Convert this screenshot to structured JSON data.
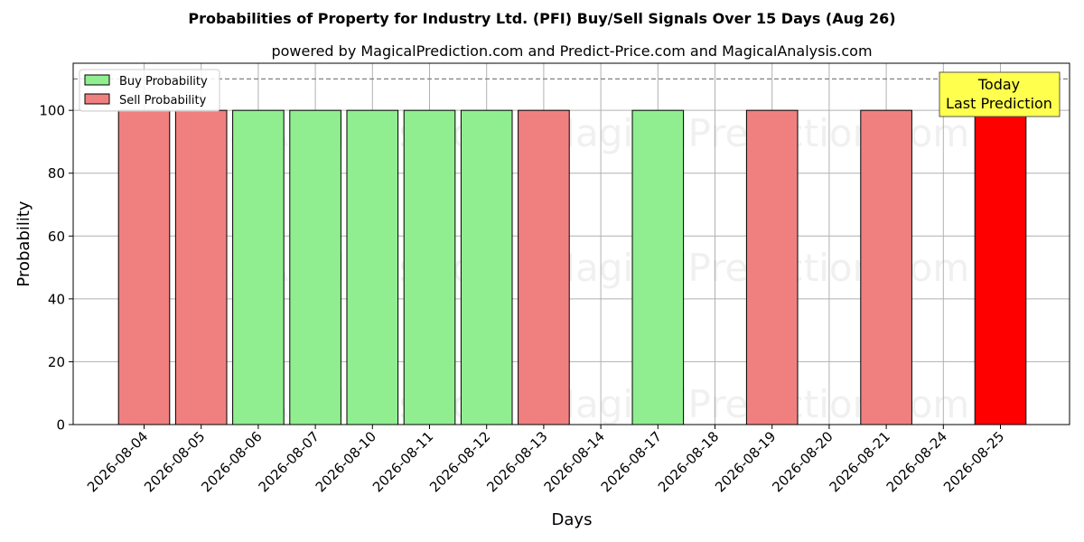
{
  "chart_data": {
    "type": "bar",
    "title": "Probabilities of Property for Industry Ltd. (PFI) Buy/Sell Signals Over 15 Days (Aug 26)",
    "subtitle": "powered by MagicalPrediction.com and Predict-Price.com and MagicalAnalysis.com",
    "xlabel": "Days",
    "ylabel": "Probability",
    "ylim": [
      0,
      115
    ],
    "yticks": [
      0,
      20,
      40,
      60,
      80,
      100
    ],
    "grid": true,
    "legend_position": "top-left",
    "categories": [
      "2026-08-04",
      "2026-08-05",
      "2026-08-06",
      "2026-08-07",
      "2026-08-10",
      "2026-08-11",
      "2026-08-12",
      "2026-08-13",
      "2026-08-14",
      "2026-08-17",
      "2026-08-18",
      "2026-08-19",
      "2026-08-20",
      "2026-08-21",
      "2026-08-24",
      "2026-08-25"
    ],
    "series": [
      {
        "name": "Buy Probability",
        "color": "#90ee90",
        "values": [
          0,
          0,
          100,
          100,
          100,
          100,
          100,
          0,
          0,
          100,
          0,
          0,
          0,
          0,
          0,
          0
        ]
      },
      {
        "name": "Sell Probability",
        "color": "#f08080",
        "values": [
          100,
          100,
          0,
          0,
          0,
          0,
          0,
          100,
          0,
          0,
          0,
          100,
          0,
          100,
          0,
          100
        ]
      }
    ],
    "highlight": {
      "category": "2026-08-25",
      "color": "#ff0000"
    },
    "reference_line": {
      "y": 110,
      "style": "dashed",
      "color": "#808080"
    },
    "annotation": {
      "lines": [
        "Today",
        "Last Prediction"
      ],
      "background": "#ffff4d"
    },
    "watermarks": [
      "MagicalAnalysis.com",
      "MagicalPrediction.com"
    ]
  }
}
